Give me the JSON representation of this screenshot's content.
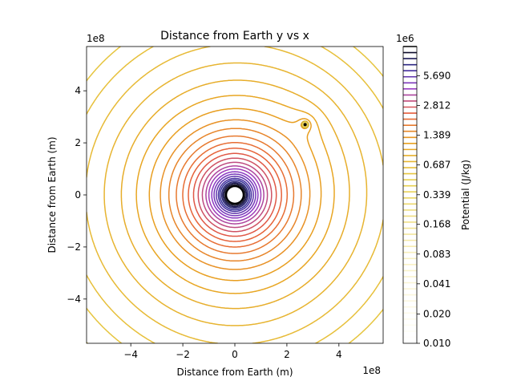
{
  "chart_data": {
    "type": "contour",
    "title": "Distance from Earth y vs x",
    "xlabel": "Distance from Earth (m)",
    "ylabel": "Distance from Earth (m)",
    "x_offset_label": "1e8",
    "y_offset_label": "1e8",
    "xlim": [
      -5.7,
      5.7
    ],
    "ylim": [
      -5.7,
      5.7
    ],
    "scale_exponent": 8,
    "x_ticks": [
      -4,
      -2,
      0,
      2,
      4
    ],
    "y_ticks": [
      -4,
      -2,
      0,
      2,
      4
    ],
    "x_tick_labels": [
      "−4",
      "−2",
      "0",
      "2",
      "4"
    ],
    "y_tick_labels": [
      "−4",
      "−2",
      "0",
      "2",
      "4"
    ],
    "grid": false,
    "earth": {
      "x": 0,
      "y": 0,
      "label": ""
    },
    "moon": {
      "x": 2.7,
      "y": 2.7
    },
    "colorbar": {
      "label": "Potential (J/kg)",
      "scale_label": "1e6",
      "scale": "log",
      "min": 0.01,
      "max": 11.4,
      "tick_values": [
        0.01,
        0.02,
        0.041,
        0.083,
        0.168,
        0.339,
        0.687,
        1.389,
        2.812,
        5.69
      ],
      "tick_labels": [
        "0.010",
        "0.020",
        "0.041",
        "0.083",
        "0.168",
        "0.339",
        "0.687",
        "1.389",
        "2.812",
        "5.690"
      ],
      "colormap": "CMRmap_r",
      "num_levels": 50
    },
    "visible_contour_levels": [
      0.35,
      0.4,
      0.45,
      0.5,
      0.56,
      0.62,
      0.7,
      0.8,
      0.92,
      1.06,
      1.22,
      1.4,
      1.58,
      1.78,
      2.0,
      2.24,
      2.52,
      2.84,
      3.2,
      3.6,
      4.0,
      4.5,
      5.0,
      5.6,
      6.3,
      7.0,
      7.9,
      8.8,
      9.9
    ]
  }
}
